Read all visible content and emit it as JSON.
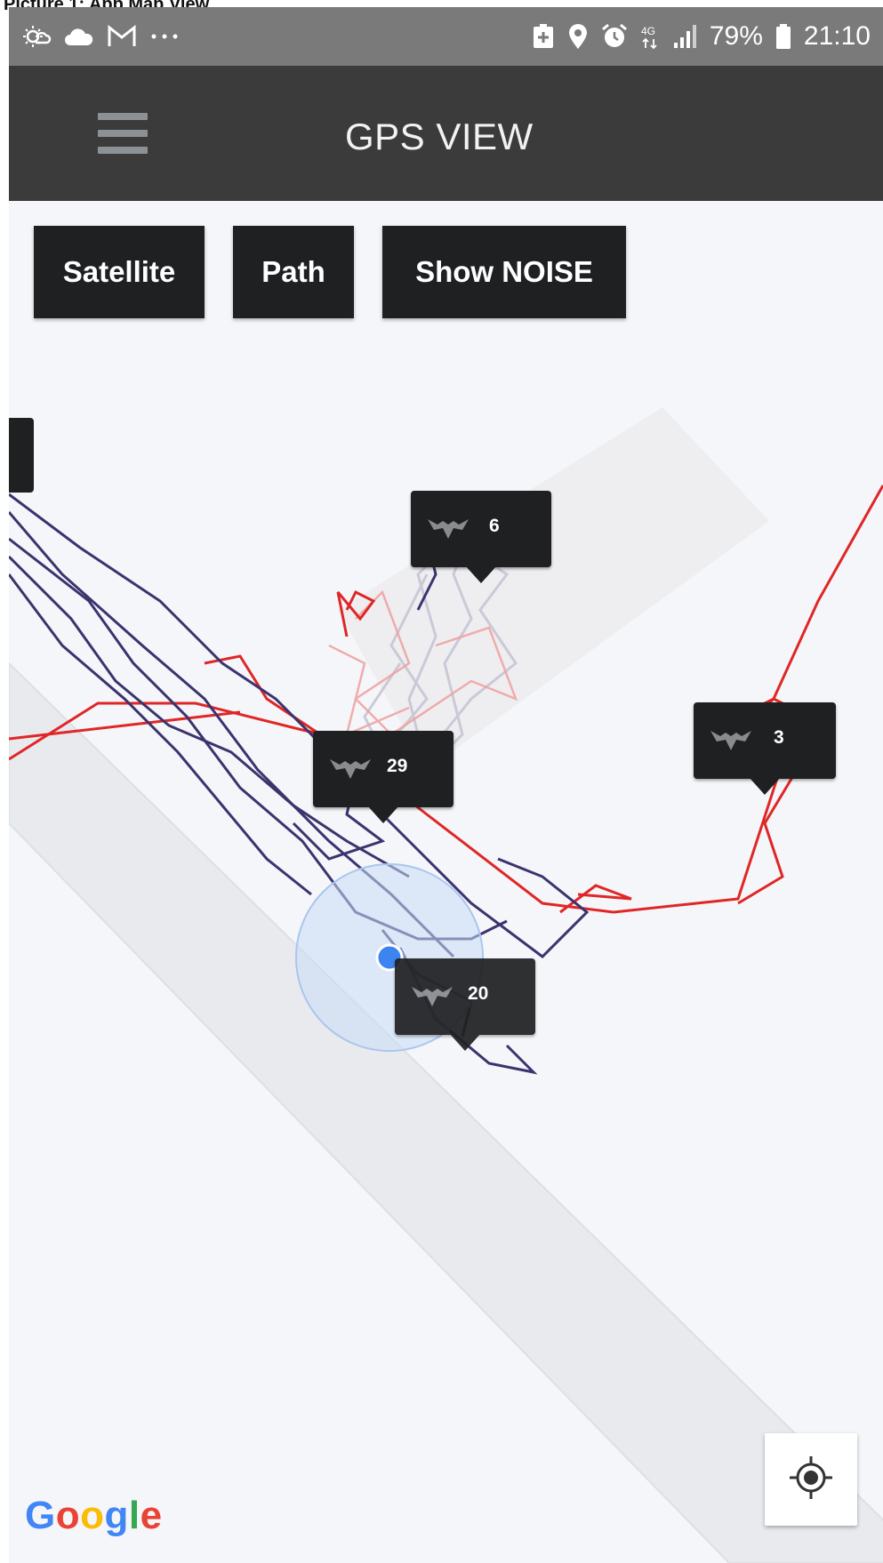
{
  "caption": "Picture 1: App Map View",
  "status_bar": {
    "left_icons": [
      "weather-icon",
      "cloud-icon",
      "gmail-icon",
      "more-dots-icon"
    ],
    "right_icons": [
      "battery-saver-icon",
      "location-pin-icon",
      "alarm-icon",
      "network-4g-icon",
      "signal-icon"
    ],
    "battery_percent": "79%",
    "time": "21:10",
    "color": "#7a7a7a"
  },
  "app_bar": {
    "title": "GPS VIEW",
    "menu_icon": "hamburger-menu-icon",
    "color": "#3b3b3b"
  },
  "map_controls": {
    "satellite_label": "Satellite",
    "path_label": "Path",
    "noise_label": "Show NOISE"
  },
  "markers": [
    {
      "id": "m6",
      "count": "6"
    },
    {
      "id": "m29",
      "count": "29"
    },
    {
      "id": "m3",
      "count": "3"
    },
    {
      "id": "m20",
      "count": "20"
    }
  ],
  "map": {
    "my_location_icon": "my-location-icon",
    "logo_letters": [
      {
        "char": "G",
        "color": "#4285F4"
      },
      {
        "char": "o",
        "color": "#EA4335"
      },
      {
        "char": "o",
        "color": "#FBBC05"
      },
      {
        "char": "g",
        "color": "#4285F4"
      },
      {
        "char": "l",
        "color": "#34A853"
      },
      {
        "char": "e",
        "color": "#EA4335"
      }
    ],
    "path_colors": {
      "dark": "#3a336e",
      "red": "#e02626",
      "faded": "#c5c2d3"
    }
  }
}
